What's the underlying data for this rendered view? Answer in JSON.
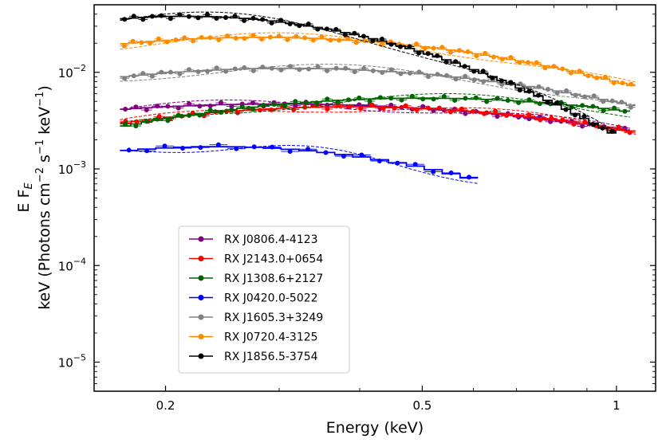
{
  "chart_data": {
    "type": "scatter",
    "title": "",
    "xlabel": "Energy (keV)",
    "ylabel_line1": "E F",
    "ylabel_line1_sub": "E",
    "ylabel_line2": "keV (Photons cm",
    "ylabel_line2_parts": [
      "keV (Photons cm",
      "−2",
      " s",
      "−1",
      " keV",
      "−1",
      ")"
    ],
    "x_scale": "log",
    "y_scale": "log",
    "xlim": [
      0.155,
      1.15
    ],
    "ylim": [
      5e-06,
      0.05
    ],
    "x_ticks": [
      {
        "value": 0.2,
        "label": "0.2"
      },
      {
        "value": 0.5,
        "label": "0.5"
      },
      {
        "value": 1.0,
        "label": "1"
      }
    ],
    "y_ticks": [
      {
        "value": 1e-05,
        "base": "10",
        "exp": "−5"
      },
      {
        "value": 0.0001,
        "base": "10",
        "exp": "−4"
      },
      {
        "value": 0.001,
        "base": "10",
        "exp": "−3"
      },
      {
        "value": 0.01,
        "base": "10",
        "exp": "−2"
      }
    ],
    "grid": false,
    "legend_position": "lower-left",
    "series": [
      {
        "name": "RX J0806.4-4123",
        "color": "#800080",
        "emin": 0.17,
        "emax": 1.05,
        "peak_e": 0.3,
        "peak_f": 0.0047,
        "sigma": 0.48,
        "n": 48
      },
      {
        "name": "RX J2143.0+0654",
        "color": "#ff0000",
        "emin": 0.17,
        "emax": 1.07,
        "peak_e": 0.39,
        "peak_f": 0.0044,
        "sigma": 0.4,
        "n": 46
      },
      {
        "name": "RX J1308.6+2127",
        "color": "#006400",
        "emin": 0.17,
        "emax": 1.05,
        "peak_e": 0.5,
        "peak_f": 0.0054,
        "sigma": 0.4,
        "n": 48
      },
      {
        "name": "RX J0420.0-5022",
        "color": "#0000ff",
        "emin": 0.17,
        "emax": 0.61,
        "peak_e": 0.24,
        "peak_f": 0.0017,
        "sigma": 0.32,
        "n": 20
      },
      {
        "name": "RX J1605.3+3249",
        "color": "#808080",
        "emin": 0.17,
        "emax": 1.07,
        "peak_e": 0.31,
        "peak_f": 0.011,
        "sigma": 0.4,
        "n": 56
      },
      {
        "name": "RX J0720.4-3125",
        "color": "#ff8c00",
        "emin": 0.17,
        "emax": 1.07,
        "peak_e": 0.28,
        "peak_f": 0.023,
        "sigma": 0.38,
        "n": 60
      },
      {
        "name": "RX J1856.5-3754",
        "color": "#000000",
        "emin": 0.17,
        "emax": 1.0,
        "peak_e": 0.215,
        "peak_f": 0.038,
        "sigma": 0.28,
        "n": 54
      }
    ]
  }
}
